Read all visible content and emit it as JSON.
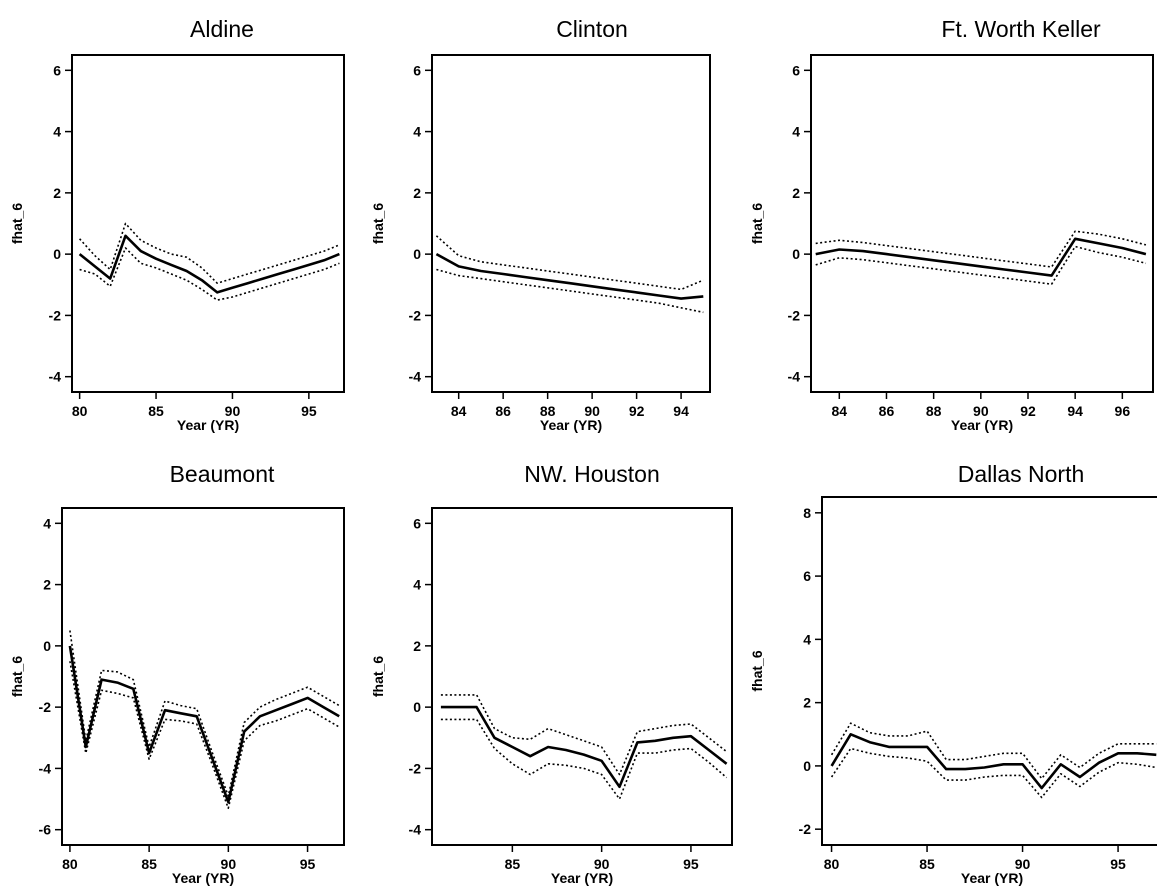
{
  "chart_data": [
    {
      "type": "line",
      "title": "Aldine",
      "xlabel": "Year (YR)",
      "ylabel": "fhat_6",
      "xlim": [
        79.5,
        97.3
      ],
      "ylim": [
        -4.5,
        6.5
      ],
      "xticks": [
        80,
        85,
        90,
        95
      ],
      "yticks": [
        -4,
        -2,
        0,
        2,
        4,
        6
      ],
      "x": [
        80,
        81,
        82,
        83,
        84,
        85,
        86,
        87,
        88,
        89,
        90,
        91,
        92,
        93,
        94,
        95,
        96,
        97
      ],
      "series": [
        {
          "role": "estimate",
          "values": [
            0.0,
            -0.4,
            -0.8,
            0.6,
            0.1,
            -0.15,
            -0.35,
            -0.55,
            -0.85,
            -1.25,
            -1.1,
            -0.95,
            -0.8,
            -0.65,
            -0.5,
            -0.35,
            -0.2,
            0.0
          ]
        },
        {
          "role": "upper band",
          "values": [
            0.5,
            -0.05,
            -0.5,
            1.0,
            0.45,
            0.2,
            0.0,
            -0.1,
            -0.45,
            -0.95,
            -0.8,
            -0.65,
            -0.5,
            -0.35,
            -0.2,
            -0.05,
            0.1,
            0.3
          ]
        },
        {
          "role": "lower band",
          "values": [
            -0.5,
            -0.65,
            -1.05,
            0.2,
            -0.3,
            -0.45,
            -0.65,
            -0.85,
            -1.15,
            -1.5,
            -1.4,
            -1.25,
            -1.1,
            -0.95,
            -0.8,
            -0.65,
            -0.5,
            -0.3
          ]
        }
      ]
    },
    {
      "type": "line",
      "title": "Clinton",
      "xlabel": "Year (YR)",
      "ylabel": "fhat_6",
      "xlim": [
        82.8,
        95.3
      ],
      "ylim": [
        -4.5,
        6.5
      ],
      "xticks": [
        84,
        86,
        88,
        90,
        92,
        94
      ],
      "yticks": [
        -4,
        -2,
        0,
        2,
        4,
        6
      ],
      "x": [
        83,
        84,
        85,
        86,
        87,
        88,
        89,
        90,
        91,
        92,
        93,
        94,
        95
      ],
      "series": [
        {
          "role": "estimate",
          "values": [
            0.0,
            -0.4,
            -0.55,
            -0.65,
            -0.75,
            -0.85,
            -0.95,
            -1.05,
            -1.15,
            -1.25,
            -1.35,
            -1.45,
            -1.38
          ]
        },
        {
          "role": "upper band",
          "values": [
            0.6,
            -0.05,
            -0.25,
            -0.35,
            -0.45,
            -0.55,
            -0.65,
            -0.75,
            -0.85,
            -0.95,
            -1.05,
            -1.15,
            -0.85
          ]
        },
        {
          "role": "lower band",
          "values": [
            -0.5,
            -0.7,
            -0.8,
            -0.9,
            -1.0,
            -1.1,
            -1.2,
            -1.3,
            -1.4,
            -1.5,
            -1.6,
            -1.75,
            -1.9
          ]
        }
      ]
    },
    {
      "type": "line",
      "title": "Ft. Worth Keller",
      "xlabel": "Year (YR)",
      "ylabel": "fhat_6",
      "xlim": [
        82.8,
        97.3
      ],
      "ylim": [
        -4.5,
        6.5
      ],
      "xticks": [
        84,
        86,
        88,
        90,
        92,
        94,
        96
      ],
      "yticks": [
        -4,
        -2,
        0,
        2,
        4,
        6
      ],
      "x": [
        83,
        84,
        85,
        86,
        87,
        88,
        89,
        90,
        91,
        92,
        93,
        94,
        95,
        96,
        97
      ],
      "series": [
        {
          "role": "estimate",
          "values": [
            0.0,
            0.15,
            0.1,
            0.0,
            -0.1,
            -0.2,
            -0.3,
            -0.4,
            -0.5,
            -0.6,
            -0.7,
            0.5,
            0.35,
            0.2,
            0.0
          ]
        },
        {
          "role": "upper band",
          "values": [
            0.35,
            0.45,
            0.38,
            0.28,
            0.18,
            0.08,
            -0.02,
            -0.12,
            -0.22,
            -0.32,
            -0.42,
            0.75,
            0.65,
            0.5,
            0.3
          ]
        },
        {
          "role": "lower band",
          "values": [
            -0.35,
            -0.12,
            -0.18,
            -0.28,
            -0.38,
            -0.48,
            -0.58,
            -0.68,
            -0.78,
            -0.88,
            -0.98,
            0.25,
            0.05,
            -0.1,
            -0.3
          ]
        }
      ]
    },
    {
      "type": "line",
      "title": "Beaumont",
      "xlabel": "Year (YR)",
      "ylabel": "fhat_6",
      "xlim": [
        79.5,
        97.3
      ],
      "ylim": [
        -6.5,
        4.5
      ],
      "xticks": [
        80,
        85,
        90,
        95
      ],
      "yticks": [
        -6,
        -4,
        -2,
        0,
        2,
        4
      ],
      "x": [
        80,
        81,
        82,
        83,
        84,
        85,
        86,
        87,
        88,
        89,
        90,
        91,
        92,
        93,
        94,
        95,
        96,
        97
      ],
      "series": [
        {
          "role": "estimate",
          "values": [
            0.0,
            -3.3,
            -1.1,
            -1.2,
            -1.4,
            -3.5,
            -2.1,
            -2.2,
            -2.3,
            -3.7,
            -5.1,
            -2.8,
            -2.3,
            -2.1,
            -1.9,
            -1.7,
            -2.0,
            -2.3
          ]
        },
        {
          "role": "upper band",
          "values": [
            0.5,
            -3.1,
            -0.8,
            -0.85,
            -1.1,
            -3.3,
            -1.8,
            -1.95,
            -2.05,
            -3.5,
            -4.9,
            -2.5,
            -2.0,
            -1.75,
            -1.55,
            -1.35,
            -1.65,
            -1.95
          ]
        },
        {
          "role": "lower band",
          "values": [
            -0.5,
            -3.5,
            -1.45,
            -1.55,
            -1.7,
            -3.7,
            -2.4,
            -2.45,
            -2.55,
            -3.9,
            -5.3,
            -3.1,
            -2.6,
            -2.45,
            -2.25,
            -2.05,
            -2.35,
            -2.65
          ]
        }
      ]
    },
    {
      "type": "line",
      "title": "NW. Houston",
      "xlabel": "Year (YR)",
      "ylabel": "fhat_6",
      "xlim": [
        80.5,
        97.3
      ],
      "ylim": [
        -4.5,
        6.5
      ],
      "xticks": [
        85,
        90,
        95
      ],
      "yticks": [
        -4,
        -2,
        0,
        2,
        4,
        6
      ],
      "x": [
        81,
        82,
        83,
        84,
        85,
        86,
        87,
        88,
        89,
        90,
        91,
        92,
        93,
        94,
        95,
        96,
        97
      ],
      "series": [
        {
          "role": "estimate",
          "values": [
            0.0,
            0.0,
            0.0,
            -1.0,
            -1.3,
            -1.6,
            -1.3,
            -1.4,
            -1.55,
            -1.75,
            -2.6,
            -1.15,
            -1.1,
            -1.0,
            -0.95,
            -1.4,
            -1.85
          ]
        },
        {
          "role": "upper band",
          "values": [
            0.4,
            0.4,
            0.4,
            -0.7,
            -1.0,
            -1.05,
            -0.7,
            -0.9,
            -1.1,
            -1.3,
            -2.2,
            -0.8,
            -0.7,
            -0.6,
            -0.55,
            -1.0,
            -1.45
          ]
        },
        {
          "role": "lower band",
          "values": [
            -0.4,
            -0.4,
            -0.4,
            -1.35,
            -1.85,
            -2.2,
            -1.85,
            -1.9,
            -2.0,
            -2.2,
            -3.0,
            -1.5,
            -1.5,
            -1.4,
            -1.35,
            -1.8,
            -2.3
          ]
        }
      ]
    },
    {
      "type": "line",
      "title": "Dallas North",
      "xlabel": "Year (YR)",
      "ylabel": "fhat_6",
      "xlim": [
        79.5,
        97.3
      ],
      "ylim": [
        -2.5,
        8.5
      ],
      "xticks": [
        80,
        85,
        90,
        95
      ],
      "yticks": [
        -2,
        0,
        2,
        4,
        6,
        8
      ],
      "x": [
        80,
        81,
        82,
        83,
        84,
        85,
        86,
        87,
        88,
        89,
        90,
        91,
        92,
        93,
        94,
        95,
        96,
        97
      ],
      "series": [
        {
          "role": "estimate",
          "values": [
            0.0,
            1.0,
            0.75,
            0.6,
            0.6,
            0.6,
            -0.1,
            -0.1,
            -0.05,
            0.05,
            0.05,
            -0.7,
            0.05,
            -0.35,
            0.1,
            0.4,
            0.4,
            0.35
          ]
        },
        {
          "role": "upper band",
          "values": [
            0.35,
            1.35,
            1.05,
            0.95,
            0.95,
            1.1,
            0.2,
            0.2,
            0.3,
            0.4,
            0.4,
            -0.4,
            0.35,
            -0.05,
            0.4,
            0.7,
            0.7,
            0.7
          ]
        },
        {
          "role": "lower band",
          "values": [
            -0.35,
            0.55,
            0.4,
            0.3,
            0.25,
            0.15,
            -0.45,
            -0.45,
            -0.35,
            -0.3,
            -0.3,
            -1.0,
            -0.25,
            -0.65,
            -0.2,
            0.1,
            0.05,
            -0.05
          ]
        }
      ]
    }
  ]
}
